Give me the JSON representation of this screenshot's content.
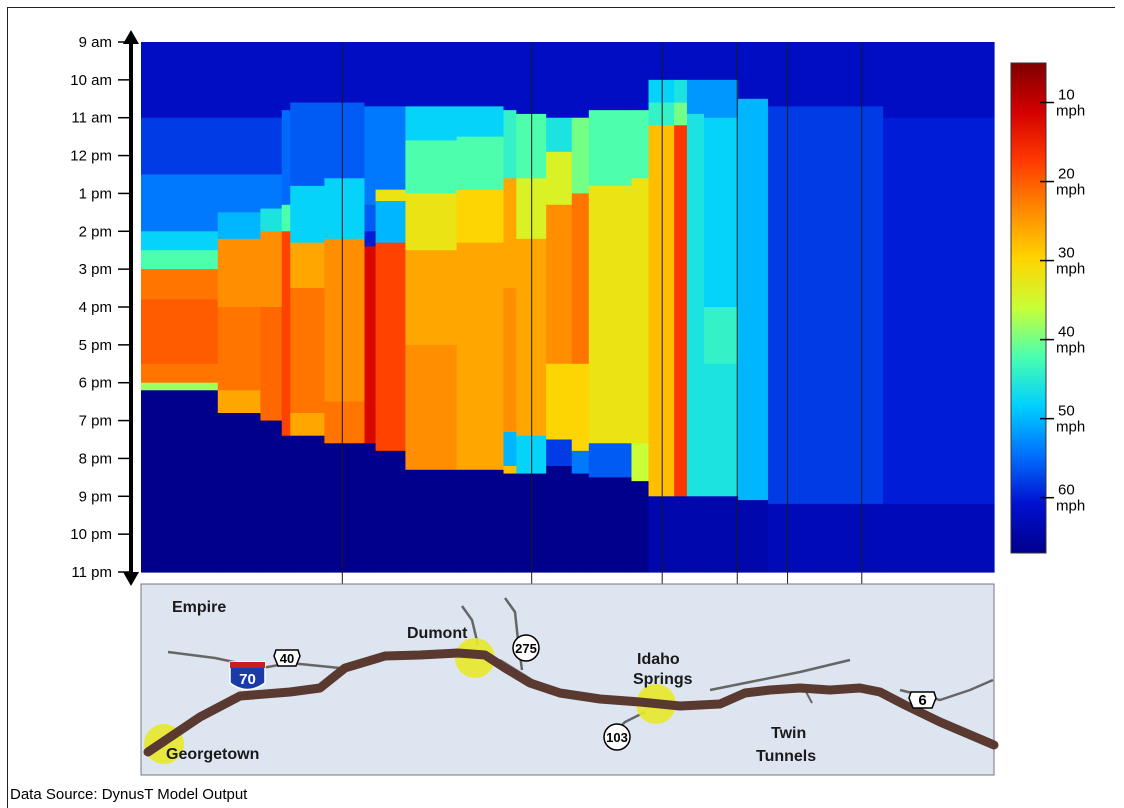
{
  "chart_data": {
    "type": "heatmap",
    "title": "",
    "xlabel": "",
    "ylabel": "",
    "y_ticks": [
      "9 am",
      "10 am",
      "11 am",
      "12 pm",
      "1 pm",
      "2 pm",
      "3 pm",
      "4 pm",
      "5 pm",
      "6 pm",
      "7 pm",
      "8 pm",
      "9 pm",
      "10 pm",
      "11 pm"
    ],
    "y_range_hours": [
      9,
      23
    ],
    "colorbar": {
      "ticks": [
        {
          "value": 10,
          "label_top": "10",
          "label_bottom": "mph"
        },
        {
          "value": 20,
          "label_top": "20",
          "label_bottom": "mph"
        },
        {
          "value": 30,
          "label_top": "30",
          "label_bottom": "mph"
        },
        {
          "value": 40,
          "label_top": "40",
          "label_bottom": "mph"
        },
        {
          "value": 50,
          "label_top": "50",
          "label_bottom": "mph"
        },
        {
          "value": 60,
          "label_top": "60",
          "label_bottom": "mph"
        }
      ],
      "range_mph": [
        5,
        67
      ],
      "colormap": [
        "#7f0000",
        "#d40000",
        "#ff3a00",
        "#ff8a00",
        "#ffd400",
        "#c8ff37",
        "#49ffb0",
        "#00d0ff",
        "#0070ff",
        "#0010d0",
        "#00008c"
      ]
    },
    "free_flow_mph": 62,
    "columns": [
      {
        "segment": 0,
        "x": [
          0.0,
          0.09
        ],
        "bands": [
          [
            9,
            11,
            62
          ],
          [
            11,
            12.5,
            58
          ],
          [
            12.5,
            14,
            54
          ],
          [
            14,
            14.5,
            48
          ],
          [
            14.5,
            15,
            42
          ],
          [
            15,
            15.8,
            22
          ],
          [
            15.8,
            17.5,
            20
          ],
          [
            17.5,
            18,
            22
          ],
          [
            18,
            18.2,
            38
          ],
          [
            18.2,
            23,
            68
          ]
        ]
      },
      {
        "segment": 1,
        "x": [
          0.09,
          0.14
        ],
        "bands": [
          [
            9,
            11,
            62
          ],
          [
            11,
            12.5,
            58
          ],
          [
            12.5,
            13.5,
            54
          ],
          [
            13.5,
            14.2,
            50
          ],
          [
            14.2,
            16,
            24
          ],
          [
            16,
            18.2,
            22
          ],
          [
            18.2,
            18.8,
            26
          ],
          [
            18.8,
            23,
            68
          ]
        ]
      },
      {
        "segment": 2,
        "x": [
          0.14,
          0.165
        ],
        "bands": [
          [
            9,
            11,
            62
          ],
          [
            11,
            12.5,
            58
          ],
          [
            12.5,
            13.4,
            54
          ],
          [
            13.4,
            14,
            46
          ],
          [
            14,
            16,
            24
          ],
          [
            16,
            19,
            21
          ],
          [
            19,
            23,
            68
          ]
        ]
      },
      {
        "segment": 3,
        "x": [
          0.165,
          0.175
        ],
        "bands": [
          [
            9,
            10.8,
            62
          ],
          [
            10.8,
            13.3,
            55
          ],
          [
            13.3,
            14,
            42
          ],
          [
            14,
            19.4,
            18
          ],
          [
            19.4,
            23,
            68
          ]
        ]
      },
      {
        "segment": 4,
        "x": [
          0.175,
          0.215
        ],
        "bands": [
          [
            9,
            10.6,
            62
          ],
          [
            10.6,
            12.8,
            56
          ],
          [
            12.8,
            14.3,
            48
          ],
          [
            14.3,
            15.5,
            26
          ],
          [
            15.5,
            18.8,
            22
          ],
          [
            18.8,
            19.4,
            26
          ],
          [
            19.4,
            23,
            68
          ]
        ]
      },
      {
        "segment": 5,
        "x": [
          0.215,
          0.262
        ],
        "bands": [
          [
            9,
            10.6,
            62
          ],
          [
            10.6,
            12.6,
            56
          ],
          [
            12.6,
            14.2,
            48
          ],
          [
            14.2,
            18.5,
            24
          ],
          [
            18.5,
            19.6,
            22
          ],
          [
            19.6,
            23,
            68
          ]
        ]
      },
      {
        "segment": 6,
        "x": [
          0.262,
          0.275
        ],
        "bands": [
          [
            9,
            10.7,
            62
          ],
          [
            10.7,
            13.3,
            54
          ],
          [
            13.3,
            14,
            56
          ],
          [
            14,
            14.4,
            60
          ],
          [
            14.4,
            19.6,
            12
          ],
          [
            19.6,
            23,
            68
          ]
        ]
      },
      {
        "segment": 7,
        "x": [
          0.275,
          0.31
        ],
        "bands": [
          [
            9,
            10.7,
            62
          ],
          [
            10.7,
            12.9,
            54
          ],
          [
            12.9,
            13.2,
            32
          ],
          [
            13.2,
            14.3,
            50
          ],
          [
            14.3,
            19.8,
            18
          ],
          [
            19.8,
            23,
            68
          ]
        ]
      },
      {
        "segment": 8,
        "x": [
          0.31,
          0.37
        ],
        "bands": [
          [
            9,
            10.7,
            62
          ],
          [
            10.7,
            11.6,
            48
          ],
          [
            11.6,
            13,
            42
          ],
          [
            13,
            14.5,
            32
          ],
          [
            14.5,
            17,
            26
          ],
          [
            17,
            20.3,
            24
          ],
          [
            20.3,
            23,
            68
          ]
        ]
      },
      {
        "segment": 9,
        "x": [
          0.37,
          0.425
        ],
        "bands": [
          [
            9,
            10.7,
            62
          ],
          [
            10.7,
            11.5,
            48
          ],
          [
            11.5,
            12.9,
            42
          ],
          [
            12.9,
            14.3,
            30
          ],
          [
            14.3,
            17.2,
            26
          ],
          [
            17.2,
            20.3,
            26
          ],
          [
            20.3,
            23,
            68
          ]
        ]
      },
      {
        "segment": 10,
        "x": [
          0.425,
          0.44
        ],
        "bands": [
          [
            9,
            10.8,
            62
          ],
          [
            10.8,
            12.6,
            44
          ],
          [
            12.6,
            15.5,
            26
          ],
          [
            15.5,
            19.3,
            24
          ],
          [
            19.3,
            20.2,
            50
          ],
          [
            20.2,
            20.4,
            28
          ],
          [
            20.4,
            23,
            68
          ]
        ]
      },
      {
        "segment": 11,
        "x": [
          0.44,
          0.475
        ],
        "bands": [
          [
            9,
            10.9,
            62
          ],
          [
            10.9,
            12.6,
            42
          ],
          [
            12.6,
            14.2,
            34
          ],
          [
            14.2,
            19.4,
            26
          ],
          [
            19.4,
            20.4,
            48
          ],
          [
            20.4,
            23,
            68
          ]
        ]
      },
      {
        "segment": 12,
        "x": [
          0.475,
          0.505
        ],
        "bands": [
          [
            9,
            11,
            62
          ],
          [
            11,
            11.9,
            46
          ],
          [
            11.9,
            13.3,
            34
          ],
          [
            13.3,
            17.5,
            24
          ],
          [
            17.5,
            19.5,
            30
          ],
          [
            19.5,
            20.2,
            58
          ],
          [
            20.2,
            23,
            68
          ]
        ]
      },
      {
        "segment": 13,
        "x": [
          0.505,
          0.525
        ],
        "bands": [
          [
            9,
            11,
            62
          ],
          [
            11,
            13,
            40
          ],
          [
            13,
            17.5,
            22
          ],
          [
            17.5,
            19.8,
            30
          ],
          [
            19.8,
            20.4,
            54
          ],
          [
            20.4,
            23,
            68
          ]
        ]
      },
      {
        "segment": 14,
        "x": [
          0.525,
          0.575
        ],
        "bands": [
          [
            9,
            10.8,
            62
          ],
          [
            10.8,
            12.8,
            42
          ],
          [
            12.8,
            19.6,
            32
          ],
          [
            19.6,
            20.5,
            56
          ],
          [
            20.5,
            23,
            68
          ]
        ]
      },
      {
        "segment": 15,
        "x": [
          0.575,
          0.595
        ],
        "bands": [
          [
            9,
            10.8,
            62
          ],
          [
            10.8,
            12.6,
            42
          ],
          [
            12.6,
            19.6,
            32
          ],
          [
            19.6,
            20.6,
            36
          ],
          [
            20.6,
            23,
            68
          ]
        ]
      },
      {
        "segment": 16,
        "x": [
          0.595,
          0.625
        ],
        "bands": [
          [
            9,
            10,
            62
          ],
          [
            10,
            10.6,
            48
          ],
          [
            10.6,
            11.2,
            44
          ],
          [
            11.2,
            21,
            28
          ],
          [
            21,
            23,
            64
          ]
        ]
      },
      {
        "segment": 17,
        "x": [
          0.625,
          0.64
        ],
        "bands": [
          [
            9,
            10,
            62
          ],
          [
            10,
            10.6,
            46
          ],
          [
            10.6,
            11.2,
            40
          ],
          [
            11.2,
            21,
            17
          ],
          [
            21,
            23,
            64
          ]
        ]
      },
      {
        "segment": 18,
        "x": [
          0.64,
          0.66
        ],
        "bands": [
          [
            9,
            10,
            62
          ],
          [
            10,
            10.9,
            52
          ],
          [
            10.9,
            21,
            46
          ],
          [
            21,
            23,
            64
          ]
        ]
      },
      {
        "segment": 19,
        "x": [
          0.66,
          0.7
        ],
        "bands": [
          [
            9,
            10,
            62
          ],
          [
            10,
            11,
            52
          ],
          [
            11,
            16,
            48
          ],
          [
            16,
            17.5,
            44
          ],
          [
            17.5,
            21,
            46
          ],
          [
            21,
            23,
            64
          ]
        ]
      },
      {
        "segment": 20,
        "x": [
          0.7,
          0.735
        ],
        "bands": [
          [
            9,
            10.5,
            62
          ],
          [
            10.5,
            21.1,
            50
          ],
          [
            21.1,
            23,
            64
          ]
        ]
      },
      {
        "segment": 21,
        "x": [
          0.735,
          0.87
        ],
        "bands": [
          [
            9,
            10.7,
            62
          ],
          [
            10.7,
            21.2,
            58
          ],
          [
            21.2,
            23,
            63
          ]
        ]
      },
      {
        "segment": 22,
        "x": [
          0.87,
          1.0
        ],
        "bands": [
          [
            9,
            11,
            62
          ],
          [
            11,
            21.2,
            60
          ],
          [
            21.2,
            23,
            63
          ]
        ]
      }
    ],
    "map": {
      "labels": {
        "empire": "Empire",
        "dumont": "Dumont",
        "idaho_springs_line1": "Idaho",
        "idaho_springs_line2": "Springs",
        "georgetown": "Georgetown",
        "twin_tunnels_line1": "Twin",
        "twin_tunnels_line2": "Tunnels"
      },
      "shields": {
        "us40": "40",
        "i70": "70",
        "route275": "275",
        "route103": "103",
        "us6": "6"
      }
    },
    "source_note": "Data Source: DynusT Model Output"
  }
}
